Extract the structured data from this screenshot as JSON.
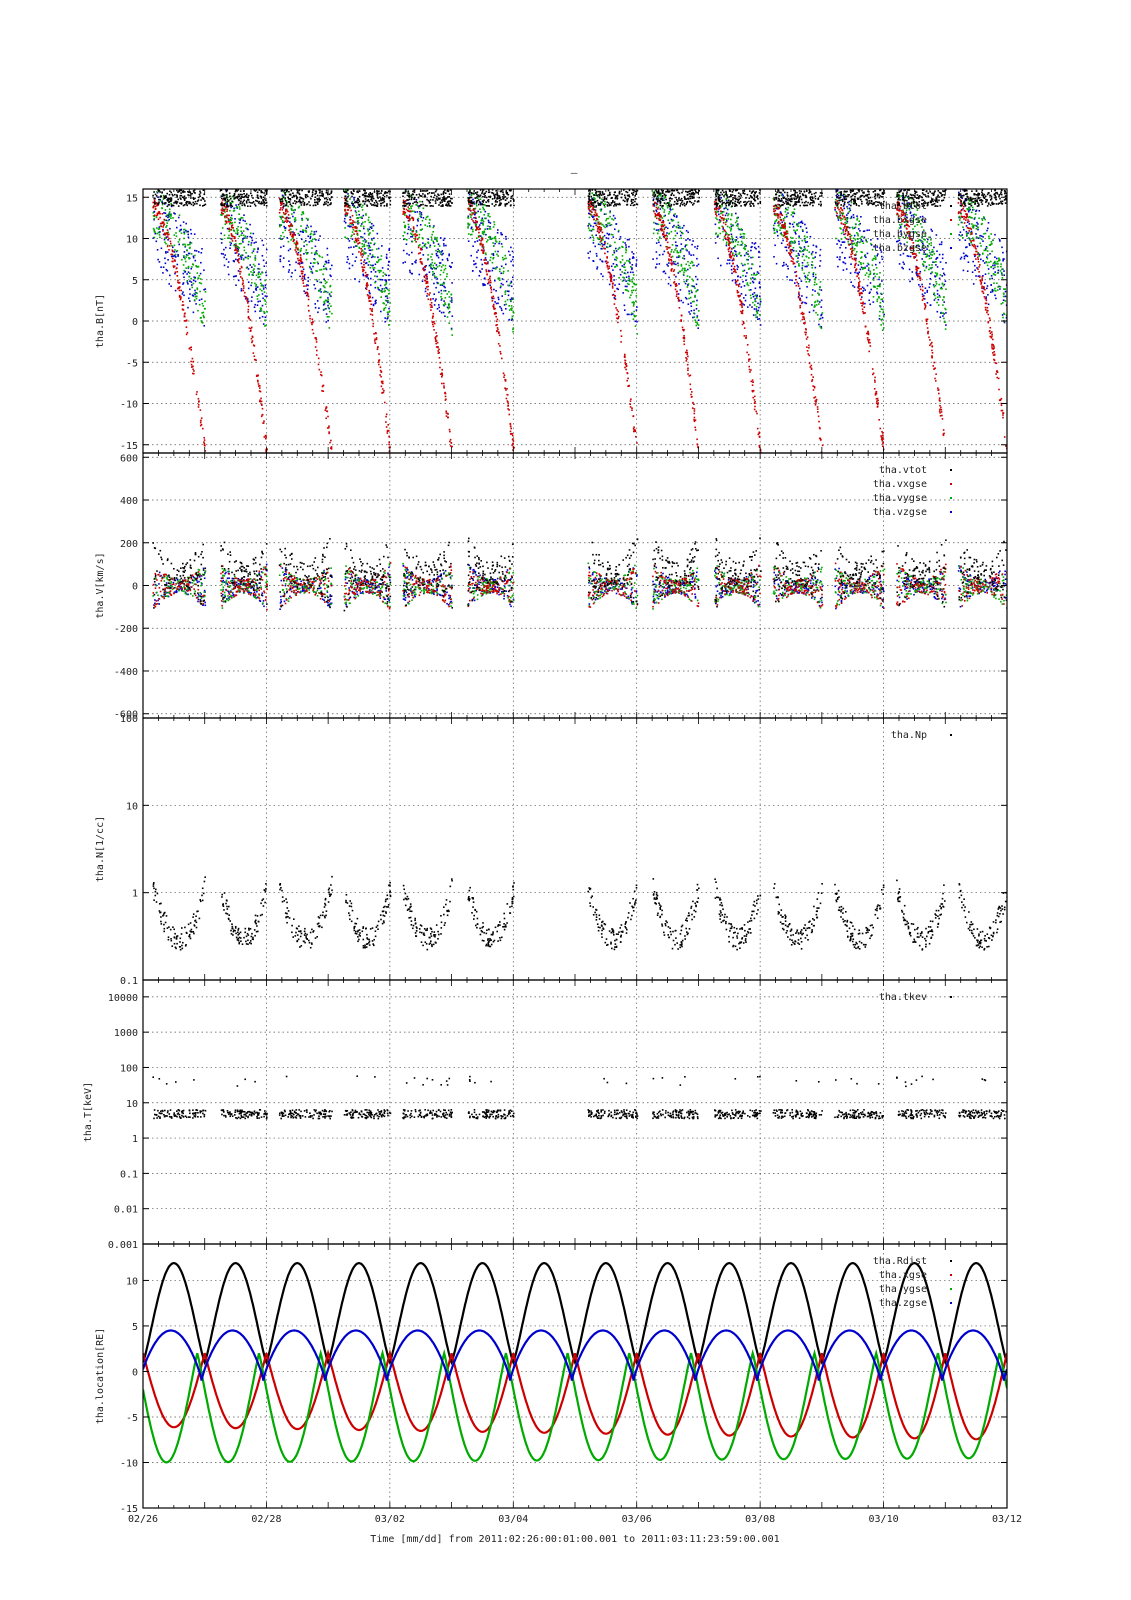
{
  "figure": {
    "top_mark": "–",
    "x_axis_title": "Time [mm/dd]  from 2011:02:26:00:01:00.001  to  2011:03:11:23:59:00.001"
  },
  "chart_data": [
    {
      "type": "scatter",
      "panel": "B",
      "ylabel": "tha.B[nT]",
      "ylim": [
        -16,
        16
      ],
      "yticks": [
        15,
        10,
        5,
        0,
        -5,
        -10,
        -15
      ],
      "ytick_labels": [
        "15",
        "10",
        "5",
        "0",
        "-5",
        "-10",
        "-15"
      ],
      "log": false,
      "legend_placement": "top-right",
      "legend": [
        "tha.btot",
        "tha.bxgse",
        "tha.bygse",
        "tha.bzgse"
      ],
      "legend_colors": [
        "#000000",
        "#cc0000",
        "#00aa00",
        "#0000cc"
      ],
      "grid": true
    },
    {
      "type": "scatter",
      "panel": "V",
      "ylabel": "tha.V[km/s]",
      "ylim": [
        -620,
        620
      ],
      "yticks": [
        600,
        400,
        200,
        0,
        -200,
        -400,
        -600
      ],
      "ytick_labels": [
        "600",
        "400",
        "200",
        "0",
        "-200",
        "-400",
        "-600"
      ],
      "log": false,
      "legend_placement": "top-right",
      "legend": [
        "tha.vtot",
        "tha.vxgse",
        "tha.vygse",
        "tha.vzgse"
      ],
      "legend_colors": [
        "#000000",
        "#cc0000",
        "#00aa00",
        "#0000cc"
      ],
      "grid": true
    },
    {
      "type": "scatter",
      "panel": "N",
      "ylabel": "tha.N[1/cc]",
      "ylim": [
        0.1,
        100
      ],
      "yticks": [
        100,
        10,
        1,
        0.1
      ],
      "ytick_labels": [
        "100",
        "10",
        "1",
        "0.1"
      ],
      "log": true,
      "legend_placement": "top-right",
      "legend": [
        "tha.Np"
      ],
      "legend_colors": [
        "#000000"
      ],
      "grid": true
    },
    {
      "type": "scatter",
      "panel": "T",
      "ylabel": "tha.T[keV]",
      "ylim": [
        0.001,
        30000
      ],
      "yticks": [
        10000,
        1000,
        100,
        10,
        1,
        0.1,
        0.01,
        0.001
      ],
      "ytick_labels": [
        "10000",
        "1000",
        "100",
        "10",
        "1",
        "0.1",
        "0.01",
        "0.001"
      ],
      "log": true,
      "legend_placement": "top-right",
      "legend": [
        "tha.tkev"
      ],
      "legend_colors": [
        "#000000"
      ],
      "grid": true
    },
    {
      "type": "line",
      "panel": "location",
      "ylabel": "tha.location[RE]",
      "ylim": [
        -15,
        14
      ],
      "yticks": [
        10,
        5,
        0,
        -5,
        -10,
        -15
      ],
      "ytick_labels": [
        "10",
        "5",
        "0",
        "-5",
        "-10",
        "-15"
      ],
      "log": false,
      "legend_placement": "top-right",
      "legend": [
        "tha.Rdist",
        "tha.xgse",
        "tha.ygse",
        "tha.zgse"
      ],
      "legend_colors": [
        "#000000",
        "#cc0000",
        "#00aa00",
        "#0000cc"
      ],
      "grid": true,
      "x_days": [
        0,
        1,
        2,
        3,
        4,
        5,
        6,
        7,
        8,
        9,
        10,
        11,
        12,
        13,
        14
      ],
      "orbit_period_days": 1.0,
      "series": [
        {
          "name": "tha.Rdist",
          "apogee": 11.9,
          "perigee": 1.0
        },
        {
          "name": "tha.xgse",
          "min": -7.5,
          "max": 2.0
        },
        {
          "name": "tha.ygse",
          "min": -10.0,
          "max": 2.0
        },
        {
          "name": "tha.zgse",
          "min": -1.0,
          "max": 4.5
        }
      ]
    }
  ],
  "x_axis": {
    "range_days": [
      0,
      14
    ],
    "ticks": [
      "02/26",
      "02/28",
      "03/02",
      "03/04",
      "03/06",
      "03/08",
      "03/10",
      "03/12"
    ],
    "tick_days": [
      0,
      2,
      4,
      6,
      8,
      10,
      12,
      14
    ]
  }
}
